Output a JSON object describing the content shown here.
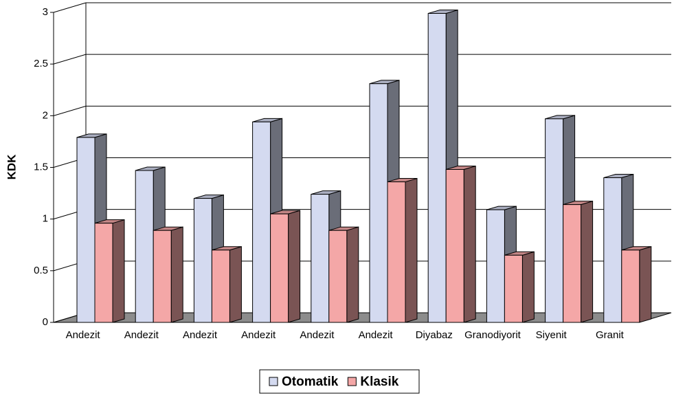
{
  "chart_data": {
    "type": "bar3d",
    "y_label": "KDK",
    "categories": [
      "Andezit",
      "Andezit",
      "Andezit",
      "Andezit",
      "Andezit",
      "Andezit",
      "Diyabaz",
      "Granodiyorit",
      "Siyenit",
      "Granit"
    ],
    "series": [
      {
        "name": "Otomatik",
        "color": "#d4daf0",
        "values": [
          1.79,
          1.47,
          1.2,
          1.94,
          1.24,
          2.31,
          2.99,
          1.09,
          1.97,
          1.4
        ]
      },
      {
        "name": "Klasik",
        "color": "#f4a7a7",
        "values": [
          0.96,
          0.89,
          0.7,
          1.05,
          0.89,
          1.36,
          1.48,
          0.65,
          1.14,
          0.7
        ]
      }
    ],
    "ylim": [
      0,
      3
    ],
    "yticks": [
      0,
      0.5,
      1,
      1.5,
      2,
      2.5,
      3
    ],
    "grid": true,
    "legend": "bottom"
  }
}
